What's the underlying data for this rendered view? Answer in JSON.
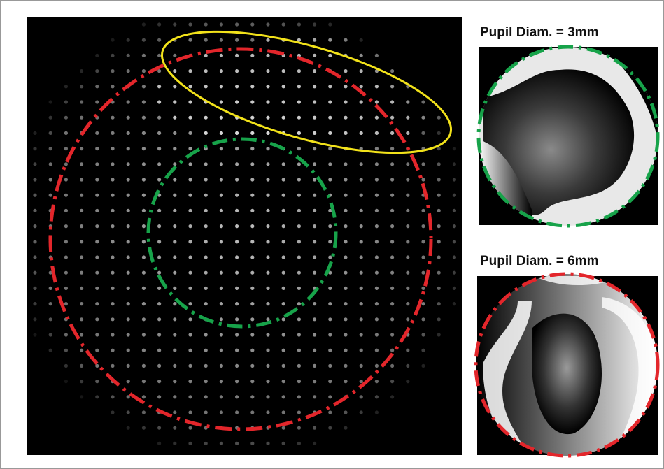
{
  "panels": [
    {
      "label": "Pupil Diam. = 3mm"
    },
    {
      "label": "Pupil Diam. = 6mm"
    }
  ]
}
